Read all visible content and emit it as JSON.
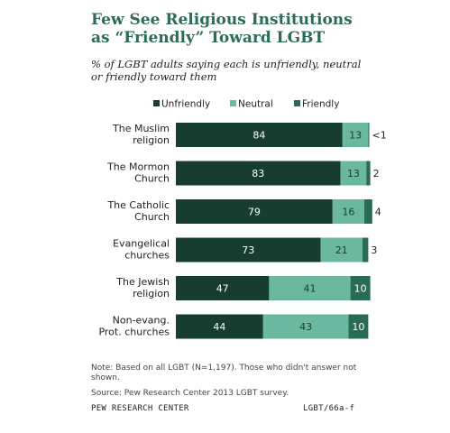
{
  "title": "Few See Religious Institutions as “Friendly” Toward LGBT",
  "subtitle": "% of LGBT adults saying each is unfriendly, neutral or friendly toward them",
  "note": "Note: Based on all LGBT (N=1,197). Those who didn't answer not shown.",
  "source": "Source: Pew Research Center 2013 LGBT survey.",
  "footer_left": "PEW RESEARCH CENTER",
  "footer_right": "LGBT/66a-f",
  "colors": {
    "unfriendly": "#173d30",
    "neutral": "#6bb8a0",
    "friendly": "#2a6b54"
  },
  "chart_data": {
    "type": "bar",
    "orientation": "horizontal",
    "stacked": true,
    "categories": [
      [
        "The Muslim",
        "religion"
      ],
      [
        "The Mormon",
        "Church"
      ],
      [
        "The Catholic",
        "Church"
      ],
      [
        "Evangelical",
        "churches"
      ],
      [
        "The Jewish",
        "religion"
      ],
      [
        "Non-evang.",
        "Prot. churches"
      ]
    ],
    "series": [
      {
        "name": "Unfriendly",
        "values": [
          84,
          83,
          79,
          73,
          47,
          44
        ],
        "labels": [
          "84",
          "83",
          "79",
          "73",
          "47",
          "44"
        ]
      },
      {
        "name": "Neutral",
        "values": [
          13,
          13,
          16,
          21,
          41,
          43
        ],
        "labels": [
          "13",
          "13",
          "16",
          "21",
          "41",
          "43"
        ]
      },
      {
        "name": "Friendly",
        "values": [
          0.5,
          2,
          4,
          3,
          10,
          10
        ],
        "labels": [
          "<1",
          "2",
          "4",
          "3",
          "10",
          "10"
        ]
      }
    ],
    "legend_position": "top",
    "xlim": [
      0,
      100
    ]
  }
}
